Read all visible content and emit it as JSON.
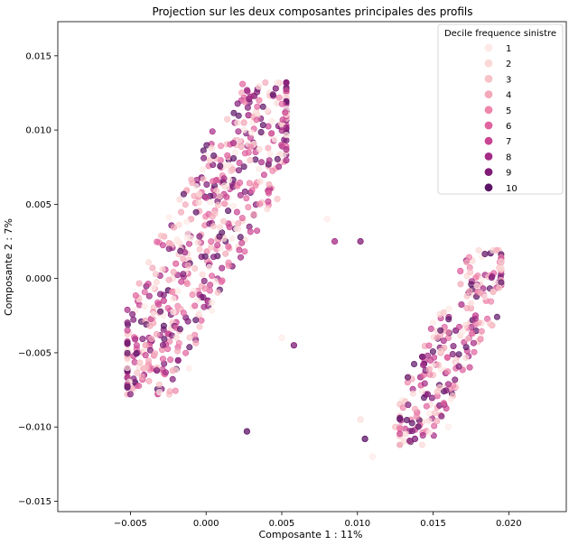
{
  "chart_data": {
    "type": "scatter",
    "title": "Projection sur les deux composantes principales des profils",
    "xlabel": "Composante 1 : 11%",
    "ylabel": "Composante 2 : 7%",
    "xlim": [
      -0.0098,
      0.0238
    ],
    "ylim": [
      -0.0157,
      0.0173
    ],
    "xticks": [
      -0.005,
      0.0,
      0.005,
      0.01,
      0.015,
      0.02
    ],
    "xtick_labels": [
      "−0.005",
      "0.000",
      "0.005",
      "0.010",
      "0.015",
      "0.020"
    ],
    "yticks": [
      -0.015,
      -0.01,
      -0.005,
      0.0,
      0.005,
      0.01,
      0.015
    ],
    "ytick_labels": [
      "−0.015",
      "−0.010",
      "−0.005",
      "0.000",
      "0.005",
      "0.010",
      "0.015"
    ],
    "grid": false,
    "legend": {
      "title": "Decile frequence sinistre",
      "placement": "top-right",
      "entries": [
        "1",
        "2",
        "3",
        "4",
        "5",
        "6",
        "7",
        "8",
        "9",
        "10"
      ]
    },
    "palette": [
      "#fdeae6",
      "#fbd9d6",
      "#f8c2c6",
      "#f4a8b9",
      "#ee86ac",
      "#e0629f",
      "#c94493",
      "#a52b86",
      "#801c77",
      "#5c1467"
    ],
    "clusters": [
      {
        "name": "left",
        "x_range": [
          -0.0052,
          0.0053
        ],
        "y_range": [
          -0.0078,
          0.0132
        ]
      },
      {
        "name": "right",
        "x_range": [
          0.0128,
          0.0195
        ],
        "y_range": [
          -0.0112,
          0.0019
        ]
      }
    ],
    "series": [
      {
        "name": "1",
        "points": [
          [
            -0.0048,
            -0.0075
          ],
          [
            -0.003,
            -0.002
          ],
          [
            0.0,
            0.004
          ],
          [
            0.003,
            0.011
          ],
          [
            0.014,
            -0.009
          ],
          [
            0.017,
            -0.006
          ],
          [
            0.005,
            -0.004
          ],
          [
            0.008,
            0.004
          ],
          [
            0.011,
            -0.012
          ],
          [
            0.016,
            -0.01
          ]
        ]
      },
      {
        "name": "2",
        "points": [
          [
            -0.0044,
            -0.006
          ],
          [
            -0.0022,
            0.0
          ],
          [
            0.0012,
            0.0065
          ],
          [
            0.0042,
            0.0125
          ],
          [
            0.0148,
            -0.0085
          ],
          [
            0.0182,
            -0.003
          ],
          [
            0.0102,
            -0.0095
          ]
        ]
      },
      {
        "name": "3",
        "points": [
          [
            -0.004,
            -0.0045
          ],
          [
            -0.0015,
            0.002
          ],
          [
            0.002,
            0.009
          ],
          [
            0.015,
            -0.0065
          ],
          [
            0.018,
            -0.001
          ],
          [
            0.0125,
            -0.01
          ]
        ]
      },
      {
        "name": "4",
        "points": [
          [
            -0.0035,
            -0.003
          ],
          [
            -0.001,
            0.004
          ],
          [
            0.0025,
            0.0105
          ],
          [
            0.0155,
            -0.005
          ],
          [
            0.0175,
            -0.002
          ]
        ]
      },
      {
        "name": "5",
        "points": [
          [
            -0.0038,
            -0.0058
          ],
          [
            -0.0005,
            0.0055
          ],
          [
            0.0035,
            0.012
          ],
          [
            0.016,
            -0.004
          ],
          [
            0.0185,
            -0.0015
          ]
        ]
      },
      {
        "name": "6",
        "points": [
          [
            -0.0042,
            -0.0068
          ],
          [
            -0.002,
            0.001
          ],
          [
            0.001,
            0.0075
          ],
          [
            0.0142,
            -0.0072
          ],
          [
            0.0168,
            0.0005
          ]
        ]
      },
      {
        "name": "7",
        "points": [
          [
            -0.0046,
            -0.0072
          ],
          [
            -0.0028,
            -0.0015
          ],
          [
            0.0005,
            0.006
          ],
          [
            0.0152,
            -0.0058
          ],
          [
            0.0178,
            -0.0025
          ]
        ]
      },
      {
        "name": "8",
        "points": [
          [
            -0.0041,
            -0.0065
          ],
          [
            -0.0012,
            0.003
          ],
          [
            0.0028,
            0.011
          ],
          [
            0.0085,
            0.0025
          ],
          [
            0.0145,
            -0.0078
          ],
          [
            0.0172,
            0.0012
          ]
        ]
      },
      {
        "name": "9",
        "points": [
          [
            -0.0036,
            -0.0042
          ],
          [
            -0.0003,
            0.0068
          ],
          [
            0.0046,
            0.0128
          ],
          [
            0.0058,
            -0.0045
          ],
          [
            0.0102,
            0.0025
          ],
          [
            0.0138,
            -0.0108
          ],
          [
            0.0165,
            -0.0035
          ]
        ]
      },
      {
        "name": "10",
        "points": [
          [
            -0.0047,
            -0.007
          ],
          [
            -0.0025,
            -0.0008
          ],
          [
            0.0015,
            0.008
          ],
          [
            0.0027,
            -0.0103
          ],
          [
            0.0105,
            -0.0108
          ],
          [
            0.0135,
            -0.011
          ],
          [
            0.0188,
            0.0017
          ]
        ]
      }
    ]
  }
}
